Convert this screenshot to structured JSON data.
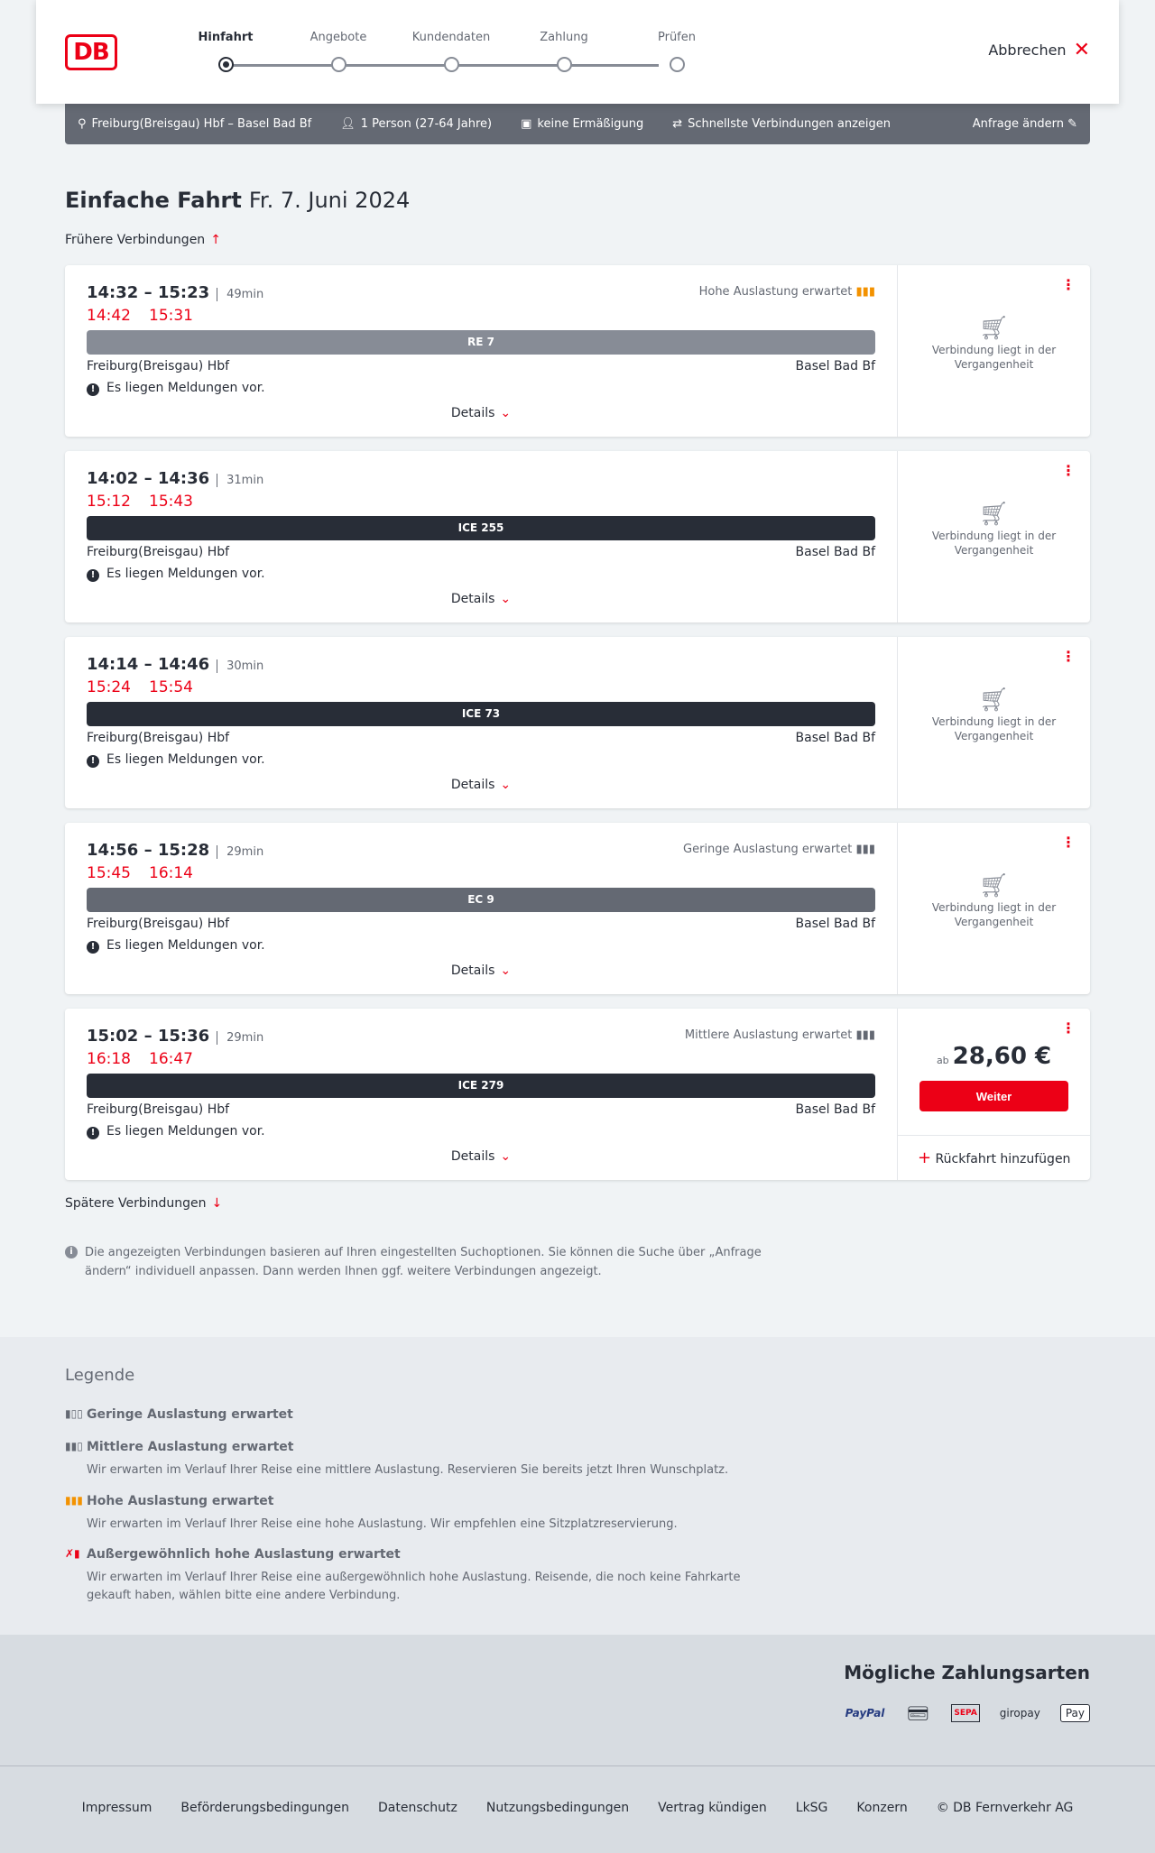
{
  "header": {
    "logo": "DB",
    "steps": [
      "Hinfahrt",
      "Angebote",
      "Kundendaten",
      "Zahlung",
      "Prüfen"
    ],
    "active_step": 0,
    "cancel": "Abbrechen"
  },
  "infobar": {
    "route": "Freiburg(Breisgau) Hbf – Basel Bad Bf",
    "passengers": "1 Person (27-64 Jahre)",
    "discount": "keine Ermäßigung",
    "fastest": "Schnellste Verbindungen anzeigen",
    "edit": "Anfrage ändern"
  },
  "title": {
    "type": "Einfache Fahrt",
    "date": "Fr. 7. Juni 2024"
  },
  "earlier": "Frühere Verbindungen",
  "later": "Spätere Verbindungen",
  "common": {
    "from": "Freiburg(Breisgau) Hbf",
    "to": "Basel Bad Bf",
    "message": "Es liegen Meldungen vor.",
    "details": "Details",
    "past": "Verbindung liegt in der Vergangenheit",
    "add_return": "Rückfahrt hinzufügen",
    "continue": "Weiter",
    "price_prefix": "ab"
  },
  "connections": [
    {
      "time": "14:32 – 15:23",
      "duration": "49min",
      "rt_dep": "14:42",
      "rt_arr": "15:31",
      "train": "RE 7",
      "bar_color": "#878c96",
      "load": "Hohe Auslastung erwartet",
      "load_color": "#f39200",
      "price": null
    },
    {
      "time": "14:02 – 14:36",
      "duration": "31min",
      "rt_dep": "15:12",
      "rt_arr": "15:43",
      "train": "ICE 255",
      "bar_color": "#282d37",
      "load": "",
      "load_color": "",
      "price": null
    },
    {
      "time": "14:14 – 14:46",
      "duration": "30min",
      "rt_dep": "15:24",
      "rt_arr": "15:54",
      "train": "ICE 73",
      "bar_color": "#282d37",
      "load": "",
      "load_color": "",
      "price": null
    },
    {
      "time": "14:56 – 15:28",
      "duration": "29min",
      "rt_dep": "15:45",
      "rt_arr": "16:14",
      "train": "EC 9",
      "bar_color": "#646973",
      "load": "Geringe Auslastung erwartet",
      "load_color": "#646973",
      "price": null
    },
    {
      "time": "15:02 – 15:36",
      "duration": "29min",
      "rt_dep": "16:18",
      "rt_arr": "16:47",
      "train": "ICE 279",
      "bar_color": "#282d37",
      "load": "Mittlere Auslastung erwartet",
      "load_color": "#646973",
      "price": "28,60 €"
    }
  ],
  "note": "Die angezeigten Verbindungen basieren auf Ihren eingestellten Suchoptionen. Sie können die Suche über „Anfrage ändern“ individuell anpassen. Dann werden Ihnen ggf. weitere Verbindungen angezeigt.",
  "legend": {
    "title": "Legende",
    "items": [
      {
        "title": "Geringe Auslastung erwartet",
        "text": ""
      },
      {
        "title": "Mittlere Auslastung erwartet",
        "text": "Wir erwarten im Verlauf Ihrer Reise eine mittlere Auslastung. Reservieren Sie bereits jetzt Ihren Wunschplatz."
      },
      {
        "title": "Hohe Auslastung erwartet",
        "text": "Wir erwarten im Verlauf Ihrer Reise eine hohe Auslastung. Wir empfehlen eine Sitzplatzreservierung."
      },
      {
        "title": "Außergewöhnlich hohe Auslastung erwartet",
        "text": "Wir erwarten im Verlauf Ihrer Reise eine außergewöhnlich hohe Auslastung. Reisende, die noch keine Fahrkarte gekauft haben, wählen bitte eine andere Verbindung."
      }
    ]
  },
  "payment": {
    "title": "Mögliche Zahlungsarten",
    "methods": [
      "PayPal",
      "Kreditkarte",
      "SEPA",
      "giropay",
      "Pay"
    ]
  },
  "footer": [
    "Impressum",
    "Beförderungsbedingungen",
    "Datenschutz",
    "Nutzungsbedingungen",
    "Vertrag kündigen",
    "LkSG",
    "Konzern",
    "© DB Fernverkehr AG"
  ],
  "colors": {
    "accent": "#ec0016",
    "dark": "#282d37",
    "high_load": "#f39200"
  }
}
